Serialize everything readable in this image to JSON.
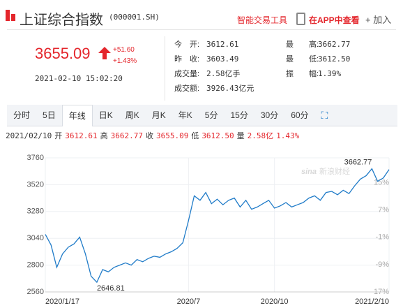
{
  "header": {
    "title": "上证综合指数",
    "code": "(000001.SH)",
    "tool": "智能交易工具",
    "app": "在APP中查看",
    "add": "加入"
  },
  "quote": {
    "price": "3655.09",
    "change": "+51.60",
    "change_pct": "+1.43%",
    "time": "2021-02-10 15:02:20",
    "stats": [
      {
        "label": "今　开:",
        "value": "3612.61"
      },
      {
        "label": "最　　高:",
        "value": "3662.77"
      },
      {
        "label": "昨　收:",
        "value": "3603.49"
      },
      {
        "label": "最　　低:",
        "value": "3612.50"
      },
      {
        "label": "成交量:",
        "value": "2.58亿手"
      },
      {
        "label": "振　　幅:",
        "value": "1.39%"
      },
      {
        "label": "成交额:",
        "value": "3926.43亿元"
      }
    ]
  },
  "tabs": [
    "分时",
    "5日",
    "年线",
    "日K",
    "周K",
    "月K",
    "年K",
    "5分",
    "15分",
    "30分",
    "60分"
  ],
  "active_tab": 2,
  "info_bar": {
    "date": "2021/02/10",
    "items": [
      {
        "label": "开",
        "value": "3612.61"
      },
      {
        "label": "高",
        "value": "3662.77"
      },
      {
        "label": "收",
        "value": "3655.09"
      },
      {
        "label": "低",
        "value": "3612.50"
      },
      {
        "label": "量",
        "value": "2.58亿"
      }
    ],
    "change": "1.43%"
  },
  "chart_data": {
    "type": "line",
    "color": "#1f7bc8",
    "watermark": "新浪财经",
    "watermark_brand": "sina",
    "categories": [
      "2020/1/17",
      null,
      null,
      null,
      null,
      null,
      null,
      null,
      null,
      null,
      null,
      null,
      null,
      null,
      null,
      null,
      null,
      null,
      null,
      null,
      null,
      null,
      null,
      null,
      null,
      "2020/7",
      null,
      null,
      null,
      null,
      null,
      null,
      null,
      null,
      null,
      null,
      null,
      null,
      null,
      null,
      "2020/10",
      null,
      null,
      null,
      null,
      null,
      null,
      null,
      null,
      null,
      null,
      null,
      null,
      null,
      null,
      null,
      null,
      null,
      null,
      null,
      "2021/2/10"
    ],
    "values": [
      3075,
      2980,
      2780,
      2900,
      2960,
      2990,
      3050,
      2900,
      2700,
      2646.81,
      2760,
      2740,
      2780,
      2800,
      2820,
      2800,
      2850,
      2830,
      2860,
      2880,
      2870,
      2900,
      2920,
      2950,
      3000,
      3200,
      3420,
      3380,
      3450,
      3350,
      3390,
      3340,
      3380,
      3400,
      3320,
      3380,
      3300,
      3320,
      3350,
      3380,
      3310,
      3330,
      3360,
      3320,
      3340,
      3360,
      3400,
      3420,
      3380,
      3450,
      3460,
      3430,
      3470,
      3440,
      3510,
      3570,
      3600,
      3662.77,
      3550,
      3580,
      3655.09
    ],
    "annotations": [
      {
        "text": "3662.77",
        "index": 57
      },
      {
        "text": "2646.81",
        "index": 9
      }
    ],
    "ylim": [
      2560,
      3760
    ],
    "yticks": [
      2560,
      2800,
      3040,
      3280,
      3520,
      3760
    ],
    "y2lim": [
      -17,
      22.3
    ],
    "y2ticks": [
      {
        "value": -17,
        "label": "-17%"
      },
      {
        "value": -9,
        "label": "-9%"
      },
      {
        "value": -1,
        "label": "-1%"
      },
      {
        "value": 7,
        "label": "7%"
      },
      {
        "value": 15,
        "label": "15%"
      }
    ],
    "grid": true
  }
}
